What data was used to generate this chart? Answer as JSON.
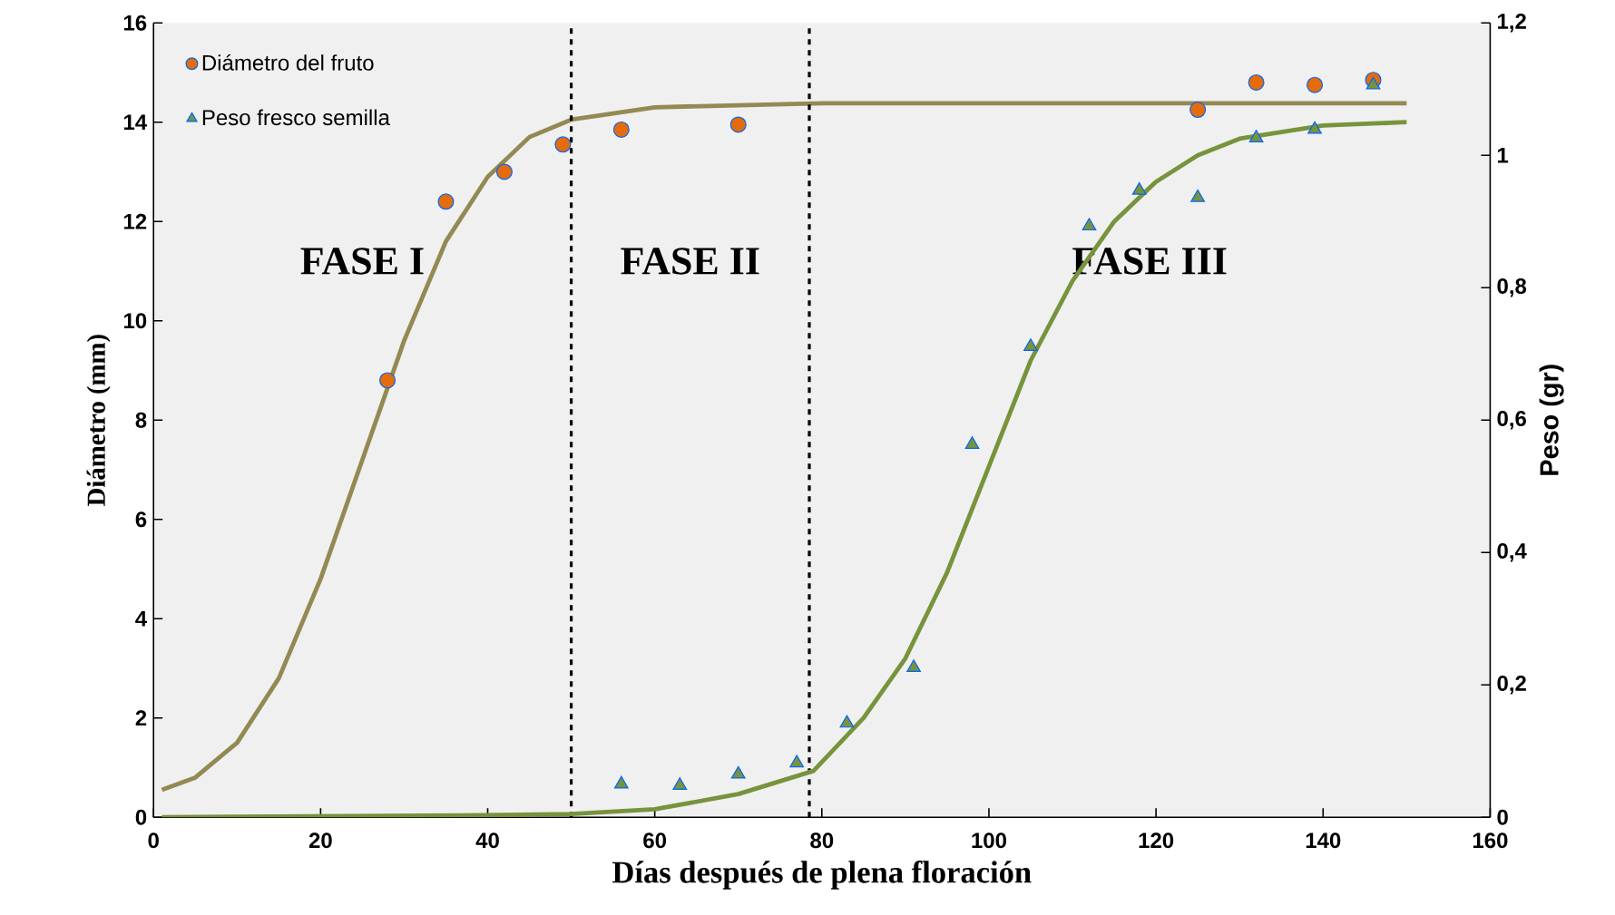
{
  "chart_data": {
    "type": "scatter",
    "xlabel": "Días después de plena floración",
    "ylabel": "Diámetro (mm)",
    "y2label": "Peso (gr)",
    "xlim": [
      0,
      160
    ],
    "xticks": [
      0,
      20,
      40,
      60,
      80,
      100,
      120,
      140,
      160
    ],
    "ylim": [
      0,
      16
    ],
    "yticks": [
      0,
      2,
      4,
      6,
      8,
      10,
      12,
      14,
      16
    ],
    "y2lim": [
      0,
      1.2
    ],
    "y2ticks": [
      0,
      {
        "value": 0.2,
        "label": "0,2"
      },
      {
        "value": 0.4,
        "label": "0,4"
      },
      {
        "value": 0.6,
        "label": "0,6"
      },
      {
        "value": 0.8,
        "label": "0,8"
      },
      1,
      {
        "value": 1.2,
        "label": "1,2"
      }
    ],
    "legend": "top left",
    "series": [
      {
        "name": "Diámetro del fruto",
        "marker": "circle",
        "color": "#e46c0a",
        "x": [
          28,
          35,
          42,
          49,
          56,
          70,
          125,
          132,
          139,
          146
        ],
        "values": [
          8.8,
          12.4,
          13.0,
          13.55,
          13.85,
          13.95,
          14.25,
          14.8,
          14.75,
          14.85
        ]
      },
      {
        "name": "Peso fresco semilla",
        "marker": "triangle",
        "axis": "y2",
        "color": "#77933c",
        "x": [
          56,
          63,
          70,
          77,
          83,
          91,
          98,
          105,
          112,
          118,
          125,
          132,
          139,
          146
        ],
        "values": [
          0.05,
          0.048,
          0.065,
          0.082,
          0.142,
          0.226,
          0.563,
          0.711,
          0.893,
          0.947,
          0.936,
          1.026,
          1.039,
          1.106
        ]
      },
      {
        "type": "line",
        "color": "#938953",
        "x": [
          1,
          5,
          10,
          15,
          20,
          25,
          30,
          35,
          40,
          45,
          50,
          60,
          80,
          150
        ],
        "values": [
          0.55,
          0.8,
          1.5,
          2.8,
          4.8,
          7.2,
          9.6,
          11.6,
          12.9,
          13.7,
          14.05,
          14.3,
          14.38,
          14.38
        ]
      },
      {
        "type": "line",
        "axis": "y2",
        "color": "#77933c",
        "x": [
          1,
          40,
          50,
          60,
          70,
          79,
          85,
          90,
          95,
          100,
          105,
          110,
          115,
          120,
          125,
          130,
          140,
          150
        ],
        "values": [
          0,
          0.003,
          0.005,
          0.012,
          0.035,
          0.07,
          0.15,
          0.24,
          0.37,
          0.53,
          0.69,
          0.81,
          0.9,
          0.96,
          1.0,
          1.025,
          1.045,
          1.05
        ]
      }
    ],
    "ref_lines": [
      {
        "axis": "x",
        "value": 50,
        "line_style": "dashed"
      },
      {
        "axis": "x",
        "value": 78.5,
        "line_style": "dashed"
      }
    ],
    "annotations": [
      "FASE I",
      "FASE II",
      "FASE III"
    ]
  }
}
